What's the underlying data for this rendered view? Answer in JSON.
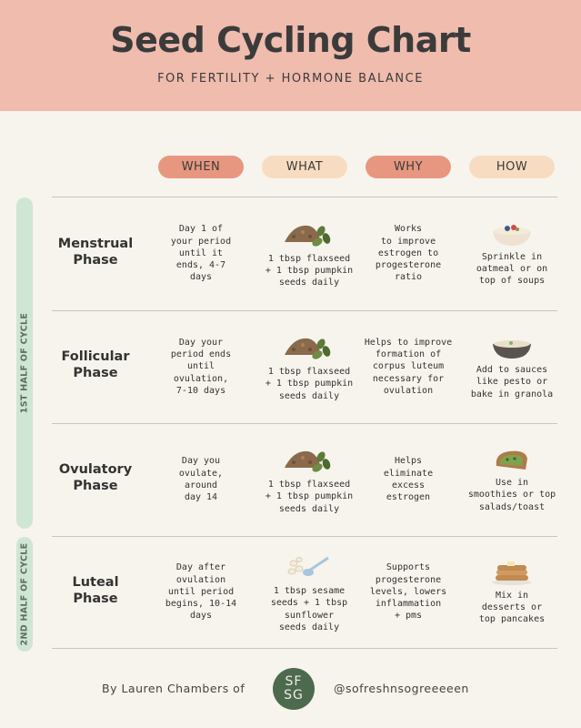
{
  "header": {
    "title": "Seed Cycling Chart",
    "subtitle": "FOR FERTILITY + HORMONE BALANCE"
  },
  "columns": [
    "WHEN",
    "WHAT",
    "WHY",
    "HOW"
  ],
  "sides": [
    "1ST HALF OF CYCLE",
    "2ND HALF OF CYCLE"
  ],
  "rows": [
    {
      "phase": [
        "Menstrual",
        "Phase"
      ],
      "when": [
        "Day 1 of",
        "your period",
        "until it",
        "ends, 4-7",
        "days"
      ],
      "what": [
        "1 tbsp flaxseed",
        "+ 1 tbsp pumpkin",
        "seeds daily"
      ],
      "why": [
        "Works",
        "to improve",
        "estrogen to",
        "progesterone",
        "ratio"
      ],
      "how": [
        "Sprinkle in",
        "oatmeal or on",
        "top of soups"
      ]
    },
    {
      "phase": [
        "Follicular",
        "Phase"
      ],
      "when": [
        "Day your",
        "period ends",
        "until",
        "ovulation,",
        "7-10 days"
      ],
      "what": [
        "1 tbsp flaxseed",
        "+ 1 tbsp pumpkin",
        "seeds daily"
      ],
      "why": [
        "Helps to improve",
        "formation of",
        "corpus luteum",
        "necessary for",
        "ovulation"
      ],
      "how": [
        "Add to sauces",
        "like pesto or",
        "bake in granola"
      ]
    },
    {
      "phase": [
        "Ovulatory",
        "Phase"
      ],
      "when": [
        "Day you",
        "ovulate,",
        "around",
        "day 14"
      ],
      "what": [
        "1 tbsp flaxseed",
        "+ 1 tbsp pumpkin",
        "seeds daily"
      ],
      "why": [
        "Helps",
        "eliminate",
        "excess",
        "estrogen"
      ],
      "how": [
        "Use in",
        "smoothies or top",
        "salads/toast"
      ]
    },
    {
      "phase": [
        "Luteal",
        "Phase"
      ],
      "when": [
        "Day after",
        "ovulation",
        "until period",
        "begins, 10-14",
        "days"
      ],
      "what": [
        "1 tbsp sesame",
        "seeds + 1 tbsp",
        "sunflower",
        "seeds daily"
      ],
      "why": [
        "Supports",
        "progesterone",
        "levels, lowers",
        "inflammation",
        "+ pms"
      ],
      "how": [
        "Mix in",
        "desserts or",
        "top pancakes"
      ]
    }
  ],
  "footer": {
    "credit": "By Lauren Chambers of",
    "logo": [
      "SF",
      "SG"
    ],
    "handle": "@sofreshnsogreeeeen"
  }
}
